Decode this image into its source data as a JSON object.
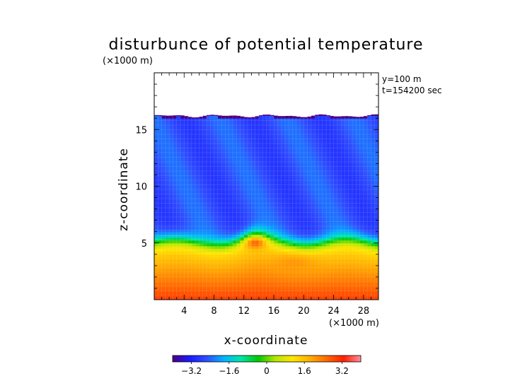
{
  "chart_data": {
    "type": "heatmap",
    "title": "disturbunce of potential temperature",
    "xlabel": "x-coordinate",
    "ylabel": "z-coordinate",
    "x_unit": "(×1000 m)",
    "y_unit": "(×1000 m)",
    "annotations": [
      "y=100 m",
      "t=154200 sec"
    ],
    "xlim": [
      0,
      30
    ],
    "ylim": [
      0,
      20
    ],
    "x_ticks": [
      4,
      8,
      12,
      16,
      20,
      24,
      28
    ],
    "y_ticks": [
      5,
      10,
      15
    ],
    "colorbar": {
      "ticks": [
        -3.2,
        -1.6,
        0,
        1.6,
        3.2
      ],
      "tick_labels": [
        "−3.2",
        "−1.6",
        "0",
        "1.6",
        "3.2"
      ],
      "range": [
        -4.0,
        4.0
      ],
      "colors": [
        "#4b0082",
        "#1a1aff",
        "#2f4fff",
        "#00b4ff",
        "#00e5a8",
        "#00c800",
        "#b4e600",
        "#ffe600",
        "#ffb000",
        "#ff6a00",
        "#ff2000",
        "#ff8fa0"
      ]
    },
    "field_summary": {
      "domain_top_km": 16.2,
      "upper_layer_value": -2.6,
      "inversion_height_km": 5.5,
      "lower_layer_surface_value": 3.0,
      "lower_layer_top_value": 1.0,
      "warm_bubble": {
        "x": 13.5,
        "z": 5.1,
        "value": 2.6
      },
      "warm_core": {
        "x": 19,
        "z": 3.6,
        "value": 1.9
      }
    }
  }
}
